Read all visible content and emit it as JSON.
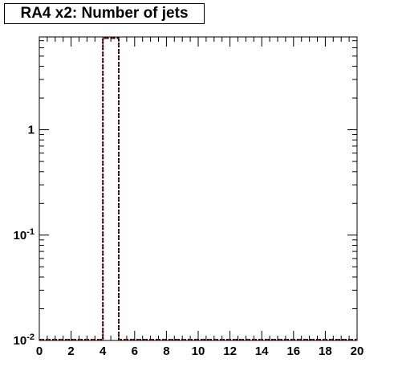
{
  "chart_data": {
    "type": "bar",
    "title": "RA4 x2: Number of jets",
    "xlabel": "",
    "ylabel": "",
    "xlim": [
      0,
      20
    ],
    "ylim": [
      0.01,
      7.6
    ],
    "y_scale": "log",
    "bin_width": 1,
    "x_ticks": [
      "0",
      "2",
      "4",
      "6",
      "8",
      "10",
      "12",
      "14",
      "16",
      "18",
      "20"
    ],
    "y_ticks": [
      {
        "value": 1,
        "label": "1"
      },
      {
        "value": 0.1,
        "label": "10",
        "exponent": "-1"
      },
      {
        "value": 0.01,
        "label": "10",
        "exponent": "-2"
      }
    ],
    "series": [
      {
        "color": "#cc0000",
        "style": "dashed",
        "bins": [
          {
            "x": 4,
            "value": 7.4
          }
        ]
      },
      {
        "color": "#000000",
        "style": "dotted",
        "bins": [
          {
            "x": 4,
            "value": 7.4
          }
        ]
      }
    ],
    "grid": false,
    "legend": "none"
  }
}
